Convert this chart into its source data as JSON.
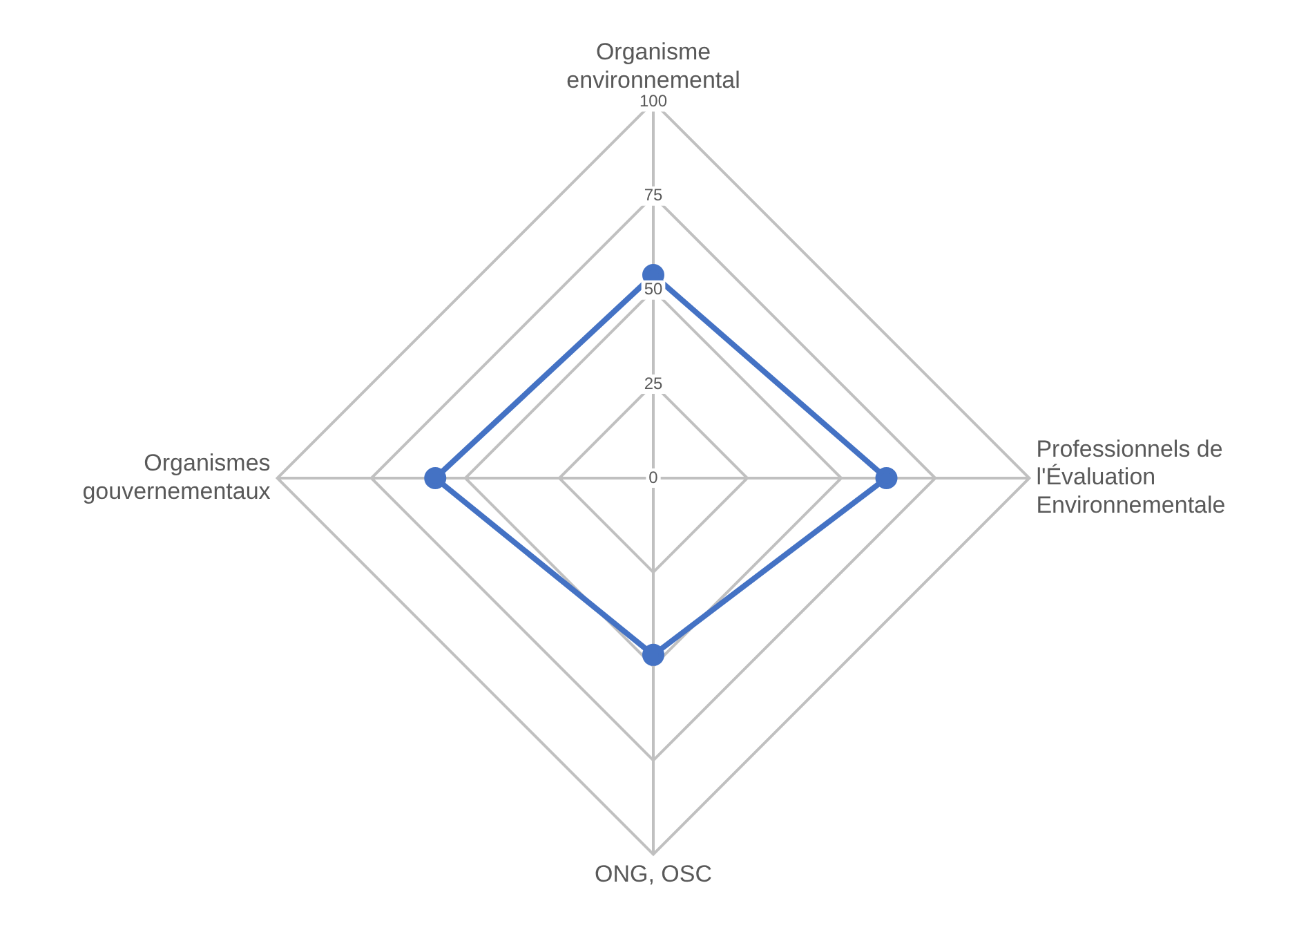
{
  "chart_data": {
    "type": "radar",
    "categories": [
      "Organisme environnemental",
      "Professionnels de l'Évaluation Environnementale",
      "ONG, OSC",
      "Organismes gouvernementaux"
    ],
    "series": [
      {
        "color": "#4472c4",
        "values": [
          54,
          62,
          47,
          58
        ]
      }
    ],
    "ylim": [
      0,
      100
    ],
    "yticks": [
      0,
      25,
      50,
      75,
      100
    ],
    "grid": true,
    "marker": "circle"
  }
}
